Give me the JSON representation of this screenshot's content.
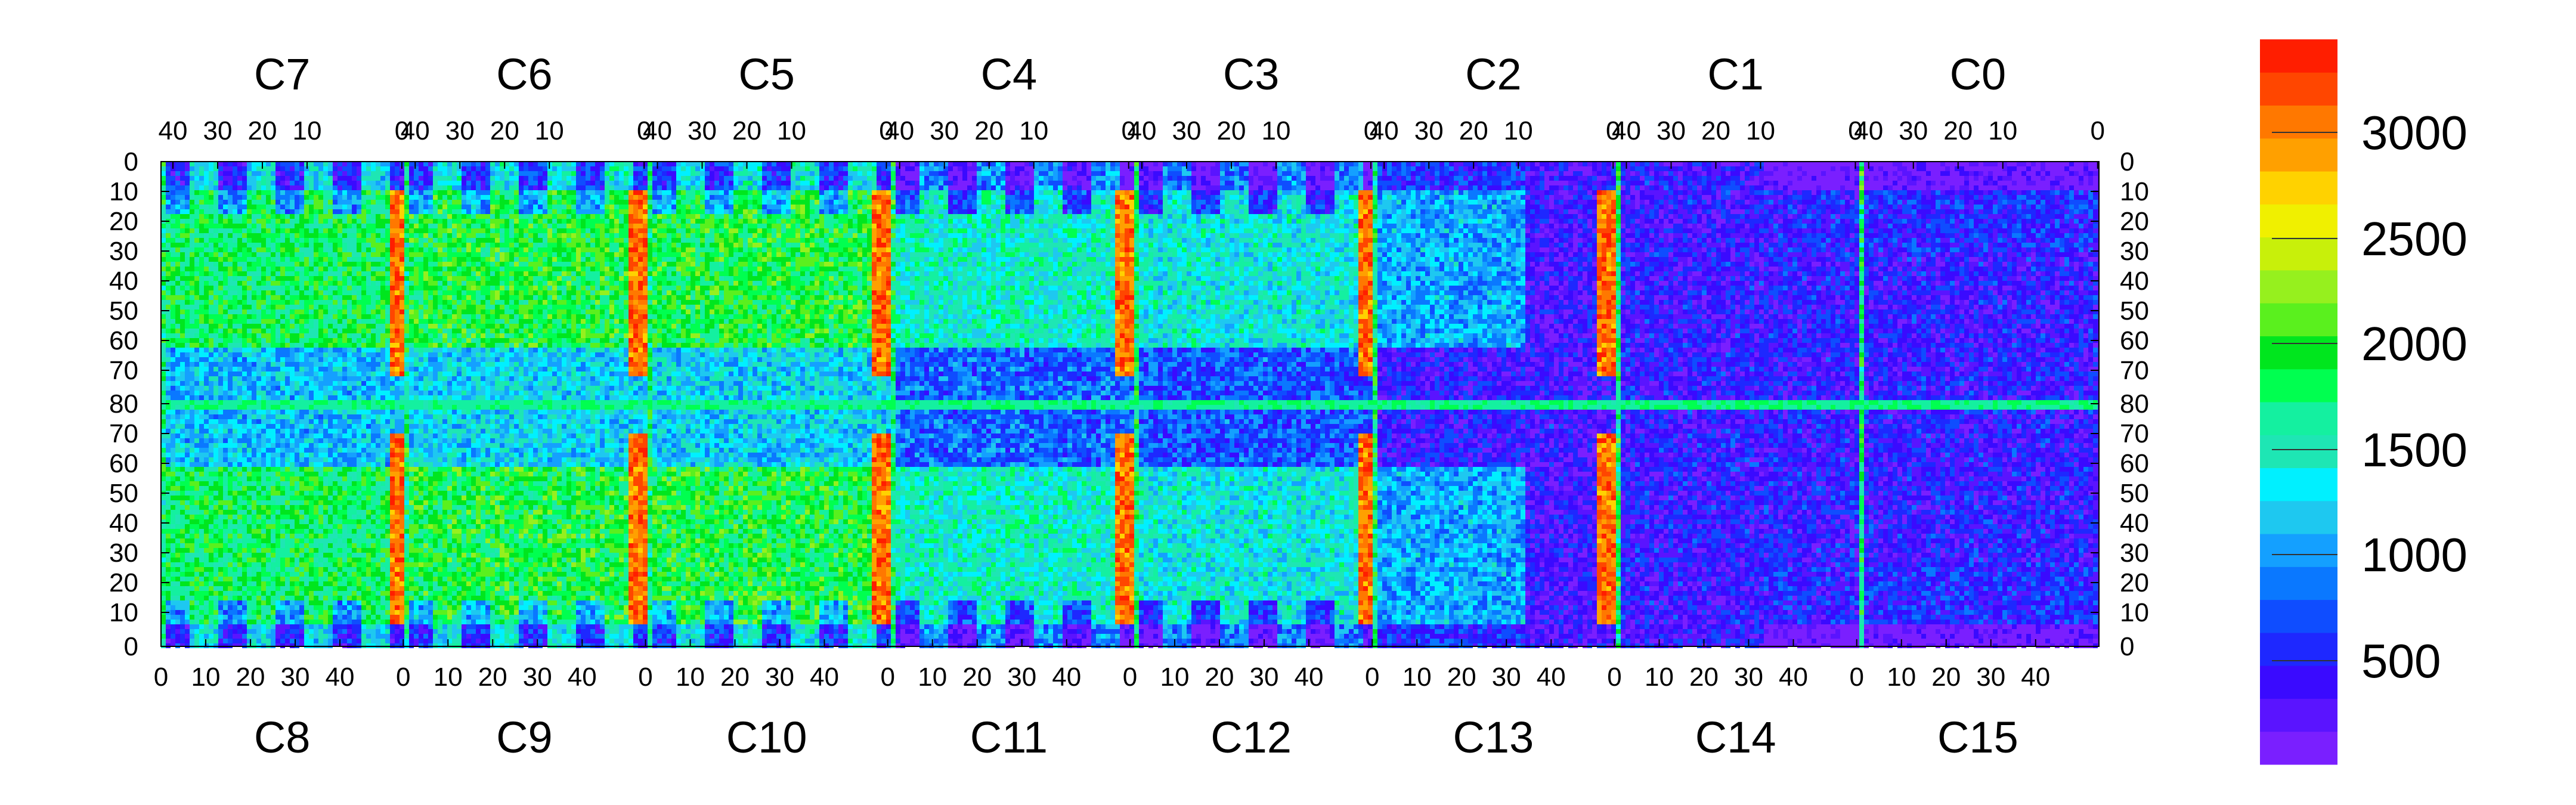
{
  "chart_data": {
    "type": "heatmap",
    "title": "",
    "xlabel": "",
    "ylabel": "",
    "top_chip_labels": [
      "C7",
      "C6",
      "C5",
      "C4",
      "C3",
      "C2",
      "C1",
      "C0"
    ],
    "bottom_chip_labels": [
      "C8",
      "C9",
      "C10",
      "C11",
      "C12",
      "C13",
      "C14",
      "C15"
    ],
    "top_x_ticks": [
      "40",
      "30",
      "20",
      "10",
      "0"
    ],
    "bottom_x_ticks": [
      "0",
      "10",
      "20",
      "30",
      "40"
    ],
    "y_ticks_top_half": [
      "0",
      "10",
      "20",
      "30",
      "40",
      "50",
      "60",
      "70",
      "80"
    ],
    "y_ticks_bottom_half": [
      "70",
      "60",
      "50",
      "40",
      "30",
      "20",
      "10",
      "0"
    ],
    "grid": false,
    "colorbar": {
      "min": 0,
      "max": 3500,
      "ticks": [
        "500",
        "1000",
        "1500",
        "2000",
        "2500",
        "3000"
      ],
      "tick_values": [
        500,
        1000,
        1500,
        2000,
        2500,
        3000
      ],
      "palette": [
        "#7a1fff",
        "#5a14ff",
        "#3a0aff",
        "#1e28ff",
        "#0f4dff",
        "#0a78ff",
        "#14a0ff",
        "#1ec8f0",
        "#00f0ff",
        "#1ee6b4",
        "#14f0a0",
        "#00ff50",
        "#00e61e",
        "#5af01e",
        "#96f01e",
        "#c8f00a",
        "#f0f000",
        "#ffd200",
        "#ffa000",
        "#ff7800",
        "#ff4600",
        "#ff1e00"
      ]
    },
    "chips": [
      {
        "name": "C7",
        "level": "medium-high",
        "hot_columns": [
          "0"
        ]
      },
      {
        "name": "C6",
        "level": "medium-high",
        "hot_columns": [
          "0"
        ]
      },
      {
        "name": "C5",
        "level": "medium-high",
        "hot_columns": [
          "0"
        ]
      },
      {
        "name": "C4",
        "level": "medium",
        "hot_columns": [
          "0"
        ]
      },
      {
        "name": "C3",
        "level": "medium",
        "hot_columns": [
          "0"
        ]
      },
      {
        "name": "C2",
        "level": "medium",
        "hot_columns": []
      },
      {
        "name": "C1",
        "level": "low",
        "hot_columns": [
          "0"
        ]
      },
      {
        "name": "C0",
        "level": "low",
        "hot_columns": []
      },
      {
        "name": "C8",
        "level": "medium-high",
        "hot_columns": [
          "0"
        ]
      },
      {
        "name": "C9",
        "level": "medium-high",
        "hot_columns": [
          "0"
        ]
      },
      {
        "name": "C10",
        "level": "medium-high",
        "hot_columns": [
          "0"
        ]
      },
      {
        "name": "C11",
        "level": "medium",
        "hot_columns": [
          "0"
        ]
      },
      {
        "name": "C12",
        "level": "medium",
        "hot_columns": [
          "0"
        ]
      },
      {
        "name": "C13",
        "level": "low",
        "hot_columns": []
      },
      {
        "name": "C14",
        "level": "low",
        "hot_columns": []
      },
      {
        "name": "C15",
        "level": "low",
        "hot_columns": []
      }
    ]
  }
}
